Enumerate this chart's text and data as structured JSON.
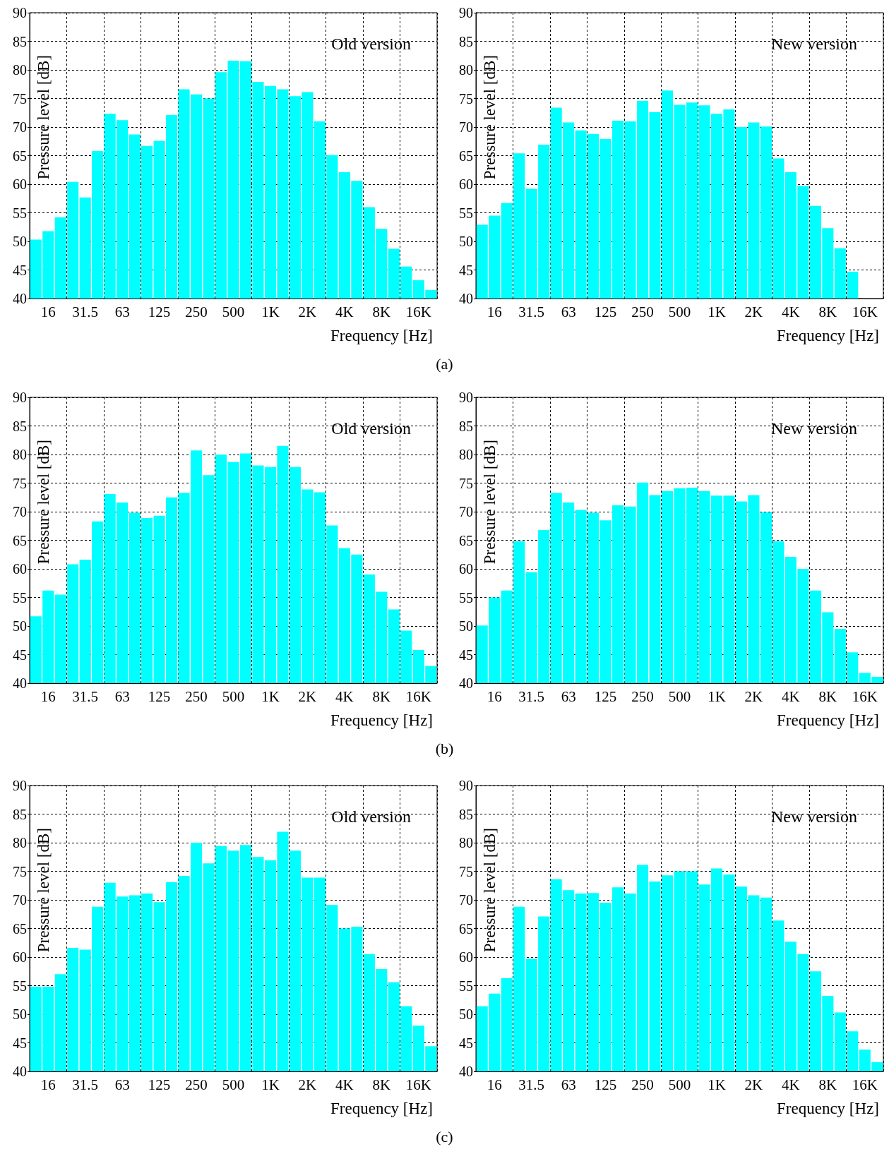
{
  "chart_data": [
    {
      "type": "bar",
      "title": "Old version",
      "xlabel": "Frequency [Hz]",
      "ylabel": "Pressure level [dB]",
      "annotations": [
        "(a)"
      ],
      "color": "#00ffff",
      "grid": true,
      "ylim": [
        40,
        90
      ],
      "yticks": [
        40,
        45,
        50,
        55,
        60,
        65,
        70,
        75,
        80,
        85,
        90
      ],
      "categories": [
        null,
        "16",
        null,
        null,
        "31.5",
        null,
        null,
        "63",
        null,
        null,
        "125",
        null,
        null,
        "250",
        null,
        null,
        "500",
        null,
        null,
        "1K",
        null,
        null,
        "2K",
        null,
        null,
        "4K",
        null,
        null,
        "8K",
        null,
        null,
        "16K",
        null
      ],
      "values": [
        50.3,
        51.8,
        54.2,
        60.4,
        57.7,
        65.8,
        72.3,
        71.2,
        68.7,
        66.7,
        67.6,
        72.1,
        76.6,
        75.7,
        75.0,
        79.6,
        81.6,
        81.5,
        77.9,
        77.2,
        76.6,
        75.4,
        76.1,
        71.0,
        65.1,
        62.1,
        60.6,
        56.0,
        52.2,
        48.7,
        45.6,
        43.2,
        41.5
      ]
    },
    {
      "type": "bar",
      "title": "New version",
      "xlabel": "Frequency [Hz]",
      "ylabel": "Pressure level [dB]",
      "color": "#00ffff",
      "grid": true,
      "ylim": [
        40,
        90
      ],
      "yticks": [
        40,
        45,
        50,
        55,
        60,
        65,
        70,
        75,
        80,
        85,
        90
      ],
      "categories": [
        null,
        "16",
        null,
        null,
        "31.5",
        null,
        null,
        "63",
        null,
        null,
        "125",
        null,
        null,
        "250",
        null,
        null,
        "500",
        null,
        null,
        "1K",
        null,
        null,
        "2K",
        null,
        null,
        "4K",
        null,
        null,
        "8K",
        null,
        null,
        "16K",
        null
      ],
      "values": [
        52.9,
        54.5,
        56.7,
        65.4,
        59.2,
        66.9,
        73.4,
        70.8,
        69.4,
        68.8,
        67.9,
        71.1,
        71.0,
        74.6,
        72.6,
        76.4,
        73.9,
        74.3,
        73.8,
        72.3,
        73.1,
        70.0,
        70.8,
        70.1,
        64.5,
        62.1,
        59.7,
        56.2,
        52.3,
        48.8,
        44.7,
        null,
        null
      ]
    },
    {
      "type": "bar",
      "title": "Old version",
      "xlabel": "Frequency [Hz]",
      "ylabel": "Pressure level [dB]",
      "annotations": [
        "(b)"
      ],
      "color": "#00ffff",
      "grid": true,
      "ylim": [
        40,
        90
      ],
      "yticks": [
        40,
        45,
        50,
        55,
        60,
        65,
        70,
        75,
        80,
        85,
        90
      ],
      "categories": [
        null,
        "16",
        null,
        null,
        "31.5",
        null,
        null,
        "63",
        null,
        null,
        "125",
        null,
        null,
        "250",
        null,
        null,
        "500",
        null,
        null,
        "1K",
        null,
        null,
        "2K",
        null,
        null,
        "4K",
        null,
        null,
        "8K",
        null,
        null,
        "16K",
        null
      ],
      "values": [
        51.7,
        56.2,
        55.5,
        60.8,
        61.6,
        68.3,
        73.1,
        71.6,
        69.8,
        68.9,
        69.3,
        72.5,
        73.3,
        80.7,
        76.4,
        80.0,
        78.7,
        80.2,
        78.1,
        77.8,
        81.5,
        77.8,
        73.9,
        73.4,
        67.6,
        63.6,
        62.5,
        59.0,
        56.0,
        52.9,
        49.2,
        45.8,
        43.0
      ]
    },
    {
      "type": "bar",
      "title": "New version",
      "xlabel": "Frequency [Hz]",
      "ylabel": "Pressure level [dB]",
      "color": "#00ffff",
      "grid": true,
      "ylim": [
        40,
        90
      ],
      "yticks": [
        40,
        45,
        50,
        55,
        60,
        65,
        70,
        75,
        80,
        85,
        90
      ],
      "categories": [
        null,
        "16",
        null,
        null,
        "31.5",
        null,
        null,
        "63",
        null,
        null,
        "125",
        null,
        null,
        "250",
        null,
        null,
        "500",
        null,
        null,
        "1K",
        null,
        null,
        "2K",
        null,
        null,
        "4K",
        null,
        null,
        "8K",
        null,
        null,
        "16K",
        null
      ],
      "values": [
        50.1,
        55.0,
        56.2,
        64.8,
        59.4,
        66.8,
        73.3,
        71.6,
        70.3,
        69.8,
        68.5,
        71.1,
        70.9,
        75.1,
        72.9,
        73.6,
        74.1,
        74.2,
        73.6,
        72.8,
        72.8,
        71.8,
        72.9,
        69.9,
        64.8,
        62.1,
        60.0,
        56.2,
        52.4,
        49.5,
        45.4,
        41.8,
        41.1
      ]
    },
    {
      "type": "bar",
      "title": "Old version",
      "xlabel": "Frequency [Hz]",
      "ylabel": "Pressure level [dB]",
      "annotations": [
        "(c)"
      ],
      "color": "#00ffff",
      "grid": true,
      "ylim": [
        40,
        90
      ],
      "yticks": [
        40,
        45,
        50,
        55,
        60,
        65,
        70,
        75,
        80,
        85,
        90
      ],
      "categories": [
        null,
        "16",
        null,
        null,
        "31.5",
        null,
        null,
        "63",
        null,
        null,
        "125",
        null,
        null,
        "250",
        null,
        null,
        "500",
        null,
        null,
        "1K",
        null,
        null,
        "2K",
        null,
        null,
        "4K",
        null,
        null,
        "8K",
        null,
        null,
        "16K",
        null
      ],
      "values": [
        54.8,
        54.8,
        57.0,
        61.6,
        61.3,
        68.8,
        73.0,
        70.6,
        70.8,
        71.1,
        69.6,
        73.1,
        74.2,
        80.0,
        76.4,
        79.4,
        78.6,
        79.6,
        77.5,
        76.9,
        81.9,
        78.6,
        73.9,
        73.9,
        69.1,
        65.0,
        65.3,
        60.5,
        57.9,
        55.6,
        51.4,
        48.0,
        44.4
      ]
    },
    {
      "type": "bar",
      "title": "New version",
      "xlabel": "Frequency [Hz]",
      "ylabel": "Pressure level [dB]",
      "color": "#00ffff",
      "grid": true,
      "ylim": [
        40,
        90
      ],
      "yticks": [
        40,
        45,
        50,
        55,
        60,
        65,
        70,
        75,
        80,
        85,
        90
      ],
      "categories": [
        null,
        "16",
        null,
        null,
        "31.5",
        null,
        null,
        "63",
        null,
        null,
        "125",
        null,
        null,
        "250",
        null,
        null,
        "500",
        null,
        null,
        "1K",
        null,
        null,
        "2K",
        null,
        null,
        "4K",
        null,
        null,
        "8K",
        null,
        null,
        "16K",
        null
      ],
      "values": [
        51.4,
        53.6,
        56.3,
        68.8,
        59.7,
        67.1,
        73.6,
        71.7,
        71.1,
        71.2,
        69.5,
        72.2,
        71.1,
        76.1,
        73.2,
        74.3,
        75.0,
        75.0,
        72.7,
        75.5,
        74.4,
        72.3,
        70.8,
        70.4,
        66.4,
        62.7,
        60.5,
        57.5,
        53.2,
        50.3,
        47.0,
        43.8,
        41.6
      ]
    }
  ]
}
